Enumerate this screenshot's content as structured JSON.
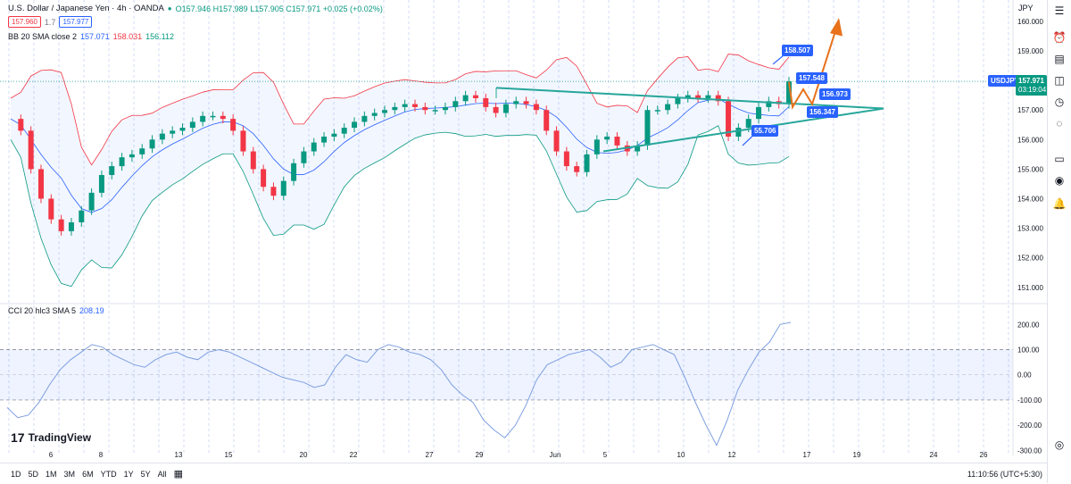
{
  "header": {
    "symbol": "U.S. Dollar / Japanese Yen · 4h · OANDA",
    "ohlc": "O157.946 H157.989 L157.905 C157.971 +0.025 (+0.02%)",
    "bid": "157.960",
    "spread": "1.7",
    "ask": "157.977",
    "bb_label": "BB 20 SMA close 2",
    "bb_mid": "157.071",
    "bb_upper": "158.031",
    "bb_lower": "156.112",
    "currency": "JPY"
  },
  "cci": {
    "label": "CCI 20 hlc3 SMA 5",
    "value": "208.19"
  },
  "logo": "TradingView",
  "symbol_tag": "USDJPY",
  "last_price": "157.971",
  "countdown": "03:19:04",
  "annotations": [
    "158.507",
    "157.548",
    "156.973",
    "156.347",
    "55.706"
  ],
  "timeframes": [
    "1D",
    "5D",
    "1M",
    "3M",
    "6M",
    "YTD",
    "1Y",
    "5Y",
    "All"
  ],
  "clock": "11:10:56 (UTC+5:30)",
  "colors": {
    "up": "#089981",
    "down": "#f23645",
    "bb": "#2962ff",
    "cci": "#7e9fe0",
    "trend": "#26a69a",
    "arrow": "#e8711a",
    "label": "#2962ff"
  },
  "chart_data": [
    {
      "type": "candlestick",
      "title": "U.S. Dollar / Japanese Yen · 4h · OANDA",
      "x_ticks": [
        "6",
        "8",
        "13",
        "15",
        "20",
        "22",
        "27",
        "29",
        "Jun",
        "5",
        "10",
        "12",
        "17",
        "19",
        "24",
        "26"
      ],
      "y_ticks": [
        "160.000",
        "159.000",
        "158.000",
        "157.000",
        "156.000",
        "155.000",
        "154.000",
        "153.000",
        "152.000",
        "151.000"
      ],
      "ylim": [
        150.6,
        160.3
      ],
      "close_approx": [
        156.7,
        156.3,
        155.0,
        154.0,
        153.3,
        152.9,
        153.2,
        153.6,
        154.2,
        154.8,
        155.1,
        155.4,
        155.5,
        155.7,
        156.0,
        156.2,
        156.3,
        156.4,
        156.6,
        156.8,
        156.8,
        156.7,
        156.3,
        155.6,
        155.0,
        154.4,
        154.1,
        154.6,
        155.2,
        155.6,
        155.9,
        156.1,
        156.2,
        156.4,
        156.6,
        156.8,
        156.9,
        157.0,
        157.1,
        157.2,
        157.1,
        157.0,
        157.0,
        157.1,
        157.3,
        157.5,
        157.4,
        157.1,
        156.9,
        157.2,
        157.3,
        157.2,
        157.0,
        156.3,
        155.6,
        155.1,
        154.9,
        155.5,
        156.0,
        156.1,
        155.8,
        155.6,
        155.8,
        157.0,
        157.0,
        157.2,
        157.4,
        157.5,
        157.4,
        157.5,
        157.3,
        156.1,
        156.4,
        156.7,
        157.1,
        157.3,
        157.2,
        157.97
      ],
      "grid": true
    },
    {
      "type": "line",
      "title": "CCI 20 hlc3 SMA 5",
      "y_ticks": [
        "200.00",
        "100.00",
        "0.00",
        "-100.00",
        "-200.00",
        "-300.00"
      ],
      "ylim": [
        -320,
        240
      ],
      "values": [
        -130,
        -170,
        -160,
        -110,
        -40,
        20,
        60,
        90,
        120,
        110,
        80,
        60,
        40,
        30,
        60,
        80,
        90,
        70,
        60,
        90,
        100,
        90,
        70,
        50,
        30,
        10,
        -10,
        -20,
        -30,
        -50,
        -40,
        30,
        80,
        60,
        50,
        100,
        120,
        110,
        90,
        80,
        60,
        20,
        -40,
        -80,
        -110,
        -180,
        -220,
        -250,
        -200,
        -120,
        -20,
        40,
        60,
        80,
        90,
        100,
        70,
        30,
        50,
        100,
        110,
        120,
        100,
        80,
        -10,
        -110,
        -200,
        -280,
        -180,
        -60,
        20,
        90,
        130,
        200,
        208.19
      ]
    }
  ]
}
